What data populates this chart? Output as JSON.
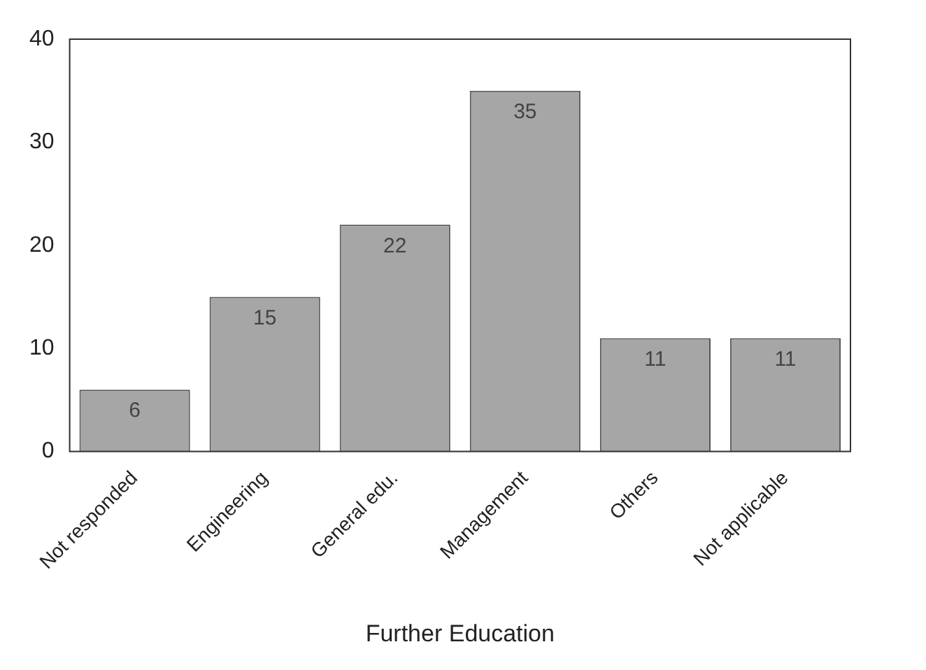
{
  "chart_data": {
    "type": "bar",
    "xlabel": "Further Education",
    "categories": [
      "Not responded",
      "Engineering",
      "General edu.",
      "Management",
      "Others",
      "Not applicable"
    ],
    "values": [
      6,
      15,
      22,
      35,
      11,
      11
    ],
    "color": "#a6a6a6",
    "ylim": [
      0,
      40
    ],
    "yticks": [
      0,
      10,
      20,
      30,
      40
    ],
    "grid": false,
    "legend": false,
    "data_labels": true
  }
}
